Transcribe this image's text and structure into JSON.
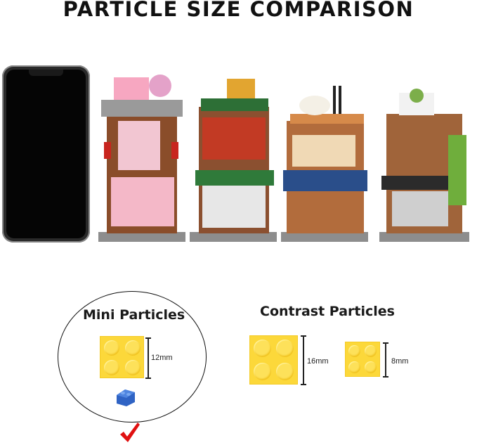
{
  "title": "PARTICLE SIZE COMPARISON",
  "mini": {
    "heading": "Mini Particles",
    "size_label": "12mm",
    "selected_icon": "checkmark-icon",
    "check_color": "#e01010"
  },
  "contrast": {
    "heading": "Contrast Particles",
    "large_label": "16mm",
    "small_label": "8mm"
  },
  "colors": {
    "brick_yellow": "#fcd83a",
    "brick_blue": "#2f63c4"
  }
}
